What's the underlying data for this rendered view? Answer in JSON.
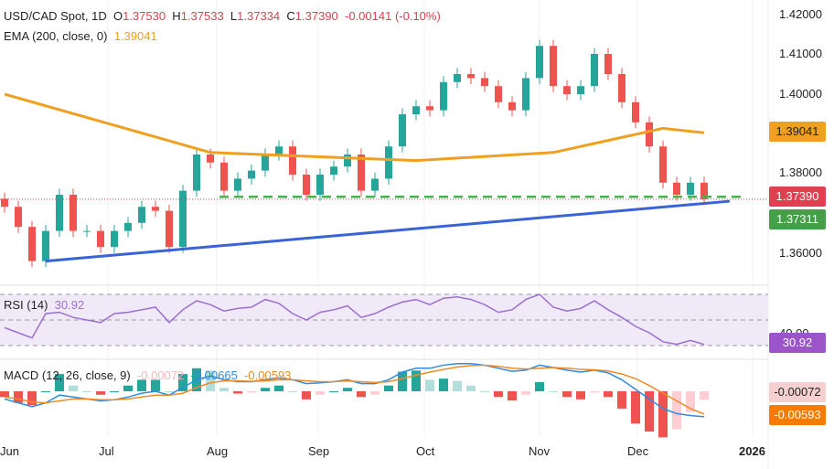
{
  "header": {
    "symbol": "USD/CAD Spot, 1D",
    "o_label": "O",
    "o": "1.37530",
    "h_label": "H",
    "h": "1.37533",
    "l_label": "L",
    "l": "1.37334",
    "c_label": "C",
    "c": "1.37390",
    "change": "-0.00141 (-0.10%)"
  },
  "ema_legend": {
    "label": "EMA (200, close, 0)",
    "value": "1.39041"
  },
  "rsi_legend": {
    "label": "RSI (14)",
    "value": "30.92"
  },
  "macd_legend": {
    "label": "MACD (12, 26, close, 9)",
    "hist": "-0.00072",
    "macd": "-0.00665",
    "signal": "-0.00593"
  },
  "price_axis": [
    "1.42000",
    "1.41000",
    "1.40000",
    "1.38000",
    "1.36000"
  ],
  "tags": {
    "ema": "1.39041",
    "last": "1.37390",
    "support": "1.37311",
    "rsi": "30.92",
    "rsi_level": "40.00",
    "macd_hist": "-0.00072",
    "macd_signal": "-0.00593"
  },
  "time_axis": [
    "Jun",
    "Jul",
    "Aug",
    "Sep",
    "Oct",
    "Nov",
    "Dec",
    "2026"
  ],
  "colors": {
    "up": "#26a69a",
    "down": "#ef5350",
    "ema": "#f0a020",
    "trendline": "#3b63d8",
    "support": "#4caf50",
    "rsi": "#9b6fd0",
    "macd": "#2e8be0",
    "signal": "#f08a24"
  },
  "chart_data": {
    "type": "candlestick",
    "start": "2025-06-01",
    "step_days": 4,
    "closes": [
      1.372,
      1.367,
      1.3585,
      1.366,
      1.375,
      1.366,
      1.366,
      1.362,
      1.366,
      1.368,
      1.372,
      1.371,
      1.362,
      1.376,
      1.385,
      1.383,
      1.376,
      1.379,
      1.381,
      1.385,
      1.387,
      1.38,
      1.375,
      1.38,
      1.382,
      1.385,
      1.376,
      1.379,
      1.387,
      1.395,
      1.397,
      1.396,
      1.403,
      1.405,
      1.404,
      1.402,
      1.398,
      1.396,
      1.404,
      1.412,
      1.402,
      1.4,
      1.402,
      1.41,
      1.405,
      1.398,
      1.393,
      1.387,
      1.378,
      1.375,
      1.378,
      1.3739
    ],
    "ema200": [
      [
        0,
        1.4
      ],
      [
        15,
        1.3855
      ],
      [
        30,
        1.3835
      ],
      [
        40,
        1.3855
      ],
      [
        48,
        1.3915
      ],
      [
        51,
        1.3904
      ]
    ],
    "trendline": [
      [
        "2025-06-13",
        1.3585
      ],
      [
        "2025-12-22",
        1.3731
      ]
    ],
    "support_level": 1.3745,
    "rsi": [
      44,
      40,
      36,
      55,
      56,
      52,
      50,
      48,
      55,
      56,
      58,
      60,
      48,
      58,
      65,
      62,
      57,
      59,
      60,
      66,
      63,
      55,
      50,
      56,
      58,
      61,
      52,
      55,
      60,
      64,
      66,
      62,
      67,
      68,
      66,
      62,
      56,
      58,
      66,
      70,
      60,
      57,
      59,
      65,
      58,
      52,
      45,
      40,
      33,
      31,
      34,
      30.92
    ],
    "macd": [
      -0.002,
      -0.003,
      -0.004,
      -0.003,
      -0.001,
      -0.0015,
      -0.002,
      -0.0025,
      -0.0022,
      -0.0015,
      -0.0005,
      0.0,
      -0.001,
      0.001,
      0.003,
      0.004,
      0.003,
      0.0025,
      0.0025,
      0.003,
      0.0035,
      0.003,
      0.002,
      0.0022,
      0.0025,
      0.003,
      0.002,
      0.002,
      0.003,
      0.005,
      0.006,
      0.006,
      0.0068,
      0.0072,
      0.0072,
      0.0068,
      0.006,
      0.0052,
      0.0055,
      0.0068,
      0.0062,
      0.0055,
      0.005,
      0.0055,
      0.0048,
      0.003,
      0.0005,
      -0.002,
      -0.0045,
      -0.0058,
      -0.0063,
      -0.00665
    ],
    "signal": [
      -0.0015,
      -0.002,
      -0.0028,
      -0.003,
      -0.0025,
      -0.002,
      -0.002,
      -0.0022,
      -0.0022,
      -0.002,
      -0.0015,
      -0.001,
      -0.001,
      -0.0005,
      0.001,
      0.0022,
      0.0027,
      0.0027,
      0.0026,
      0.0027,
      0.003,
      0.003,
      0.0027,
      0.0025,
      0.0025,
      0.0027,
      0.0025,
      0.0023,
      0.0025,
      0.0033,
      0.0042,
      0.005,
      0.0057,
      0.0063,
      0.0067,
      0.0068,
      0.0065,
      0.006,
      0.0058,
      0.006,
      0.0062,
      0.006,
      0.0057,
      0.0056,
      0.0053,
      0.0045,
      0.0033,
      0.0015,
      -0.0005,
      -0.0025,
      -0.0045,
      -0.00593
    ],
    "rsi_levels": [
      70,
      50,
      30
    ]
  }
}
